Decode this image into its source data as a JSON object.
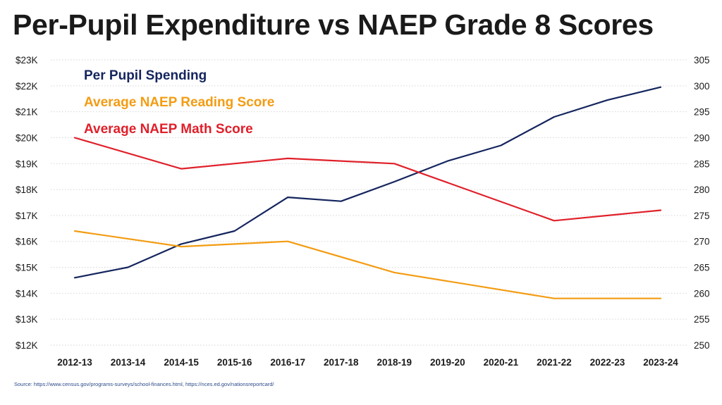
{
  "title": "Per-Pupil Expenditure vs NAEP Grade 8 Scores",
  "source": "Source: https://www.census.gov/programs-surveys/school-finances.html, https://nces.ed.gov/nationsreportcard/",
  "chart_data": {
    "type": "line",
    "title": "Per-Pupil Expenditure vs NAEP Grade 8 Scores",
    "categories": [
      "2012-13",
      "2013-14",
      "2014-15",
      "2015-16",
      "2016-17",
      "2017-18",
      "2018-19",
      "2019-20",
      "2020-21",
      "2021-22",
      "2022-23",
      "2023-24"
    ],
    "y_left": {
      "ylim": [
        12000,
        23000
      ],
      "ticks": [
        12000,
        13000,
        14000,
        15000,
        16000,
        17000,
        18000,
        19000,
        20000,
        21000,
        22000,
        23000
      ],
      "tick_labels": [
        "$12K",
        "$13K",
        "$14K",
        "$15K",
        "$16K",
        "$17K",
        "$18K",
        "$19K",
        "$20K",
        "$21K",
        "$22K",
        "$23K"
      ]
    },
    "y_right": {
      "ylim": [
        250,
        305
      ],
      "ticks": [
        250,
        255,
        260,
        265,
        270,
        275,
        280,
        285,
        290,
        295,
        300,
        305
      ],
      "tick_labels": [
        "250",
        "255",
        "260",
        "265",
        "270",
        "275",
        "280",
        "285",
        "290",
        "295",
        "300",
        "305"
      ]
    },
    "grid": "horizontal dotted",
    "legend_position": "top-left",
    "series": [
      {
        "name": "Per Pupil Spending",
        "axis": "left",
        "color": "#14255e",
        "values": [
          14600,
          15000,
          15900,
          16400,
          17700,
          17550,
          18300,
          19100,
          19700,
          20800,
          21450,
          21950
        ]
      },
      {
        "name": "Average NAEP Reading Score",
        "axis": "right",
        "color": "#f39c12",
        "values": [
          272,
          null,
          269,
          null,
          270,
          null,
          264,
          null,
          null,
          259,
          null,
          259
        ]
      },
      {
        "name": "Average NAEP Math Score",
        "axis": "right",
        "color": "#e0202a",
        "values": [
          290,
          null,
          284,
          null,
          286,
          null,
          285,
          null,
          null,
          274,
          null,
          276
        ]
      }
    ]
  }
}
